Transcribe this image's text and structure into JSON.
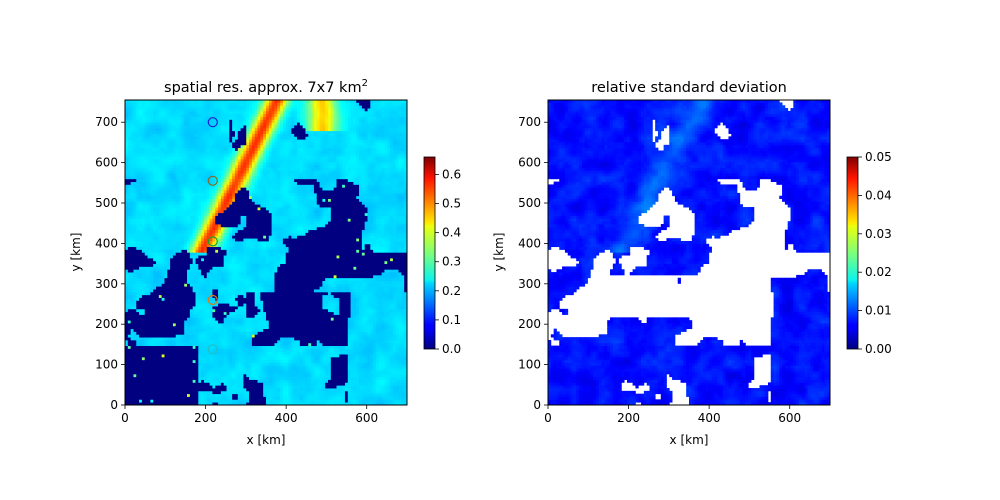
{
  "chart_data": [
    {
      "type": "heatmap",
      "title": "spatial res. approx. 7x7 km",
      "title_superscript": "2",
      "xlabel": "x [km]",
      "ylabel": "y [km]",
      "xlim": [
        0,
        700
      ],
      "ylim": [
        0,
        755
      ],
      "xticks": [
        0,
        200,
        400,
        600
      ],
      "yticks": [
        0,
        100,
        200,
        300,
        400,
        500,
        600,
        700
      ],
      "colormap": "jet",
      "colorbar": {
        "range": [
          0.0,
          0.66
        ],
        "ticks": [
          "0.0",
          "0.1",
          "0.2",
          "0.3",
          "0.4",
          "0.5",
          "0.6"
        ],
        "tick_values": [
          0.0,
          0.1,
          0.2,
          0.3,
          0.4,
          0.5,
          0.6
        ]
      },
      "markers": [
        {
          "x": 218,
          "y": 700,
          "color": "#1f1fd0"
        },
        {
          "x": 218,
          "y": 555,
          "color": "#8a6a1a"
        },
        {
          "x": 218,
          "y": 405,
          "color": "#1f9f2f"
        },
        {
          "x": 218,
          "y": 260,
          "color": "#e07a10"
        },
        {
          "x": 218,
          "y": 138,
          "color": "#20c0c0"
        }
      ],
      "grid": false
    },
    {
      "type": "heatmap",
      "title": "relative standard deviation",
      "xlabel": "x [km]",
      "ylabel": "y [km]",
      "xlim": [
        0,
        700
      ],
      "ylim": [
        0,
        755
      ],
      "xticks": [
        0,
        200,
        400,
        600
      ],
      "yticks": [
        0,
        100,
        200,
        300,
        400,
        500,
        600,
        700
      ],
      "colormap": "jet",
      "colorbar": {
        "range": [
          0.0,
          0.05
        ],
        "ticks": [
          "0.00",
          "0.01",
          "0.02",
          "0.03",
          "0.04",
          "0.05"
        ],
        "tick_values": [
          0.0,
          0.01,
          0.02,
          0.03,
          0.04,
          0.05
        ]
      },
      "grid": false
    }
  ],
  "colors": {
    "background_dark": "#00007f",
    "nodata": "#ffffff"
  }
}
